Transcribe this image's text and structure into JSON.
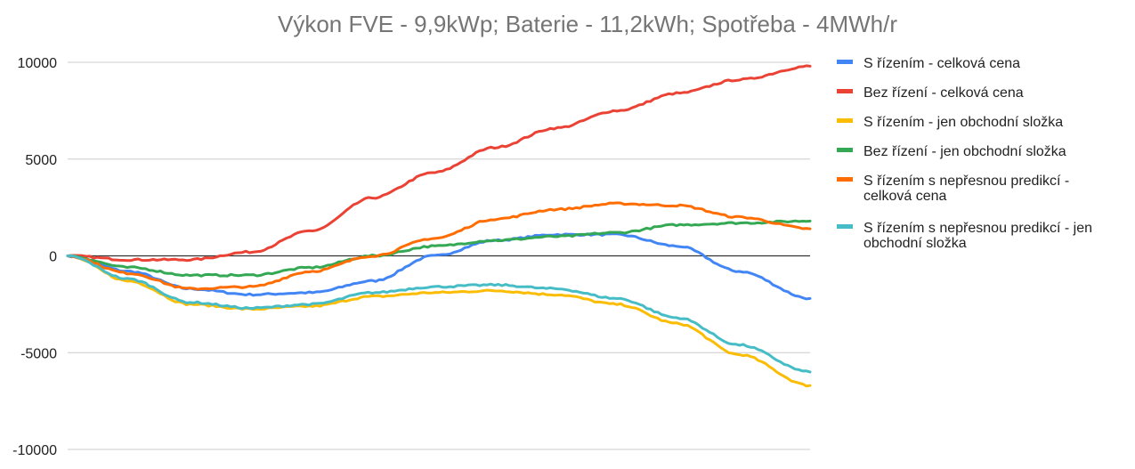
{
  "chart_data": {
    "type": "line",
    "title": "Výkon FVE - 9,9kWp; Baterie - 11,2kWh; Spotřeba - 4MWh/r",
    "xlabel": "",
    "ylabel": "",
    "ylim": [
      -10000,
      10000
    ],
    "y_ticks": [
      "10000",
      "5000",
      "0",
      "-5000",
      "-10000"
    ],
    "grid": true,
    "legend_position": "right",
    "x": [
      0,
      30,
      60,
      90,
      120,
      150,
      180,
      210,
      240,
      270,
      300,
      330,
      365
    ],
    "series": [
      {
        "name": "S řízením - celková cena",
        "color": "#4285F4",
        "values": [
          0,
          -800,
          -1700,
          -2000,
          -1900,
          -1300,
          0,
          800,
          1100,
          1100,
          500,
          -800,
          -2200
        ]
      },
      {
        "name": "Bez řízení - celková cena",
        "color": "#EA4335",
        "values": [
          0,
          -200,
          -200,
          200,
          1300,
          3000,
          4300,
          5600,
          6600,
          7500,
          8400,
          9100,
          9800
        ]
      },
      {
        "name": "S řízením - jen obchodní složka",
        "color": "#FBBC04",
        "values": [
          0,
          -1300,
          -2500,
          -2750,
          -2600,
          -2100,
          -1900,
          -1800,
          -2000,
          -2500,
          -3500,
          -5100,
          -6700
        ]
      },
      {
        "name": "Bez řízení  - jen obchodní složka",
        "color": "#34A853",
        "values": [
          0,
          -600,
          -1000,
          -1000,
          -600,
          0,
          500,
          800,
          1000,
          1200,
          1600,
          1700,
          1800
        ]
      },
      {
        "name": "S řízením s nepřesnou predikcí - celková cena",
        "color": "#FF6D01",
        "values": [
          0,
          -900,
          -1700,
          -1600,
          -800,
          0,
          900,
          1900,
          2400,
          2700,
          2600,
          2000,
          1400
        ]
      },
      {
        "name": "S řízením s nepřesnou predikcí - jen obchodní složka",
        "color": "#46BDC6",
        "values": [
          0,
          -1200,
          -2400,
          -2700,
          -2500,
          -1900,
          -1600,
          -1500,
          -1700,
          -2200,
          -3200,
          -4600,
          -6000
        ]
      }
    ],
    "legend_lines": [
      [
        "S řízením - celková cena"
      ],
      [
        "Bez řízení - celková cena"
      ],
      [
        "S řízením - jen obchodní složka"
      ],
      [
        "Bez řízení  - jen obchodní složka"
      ],
      [
        "S řízením s nepřesnou predikcí -",
        "celková cena"
      ],
      [
        "S řízením s nepřesnou predikcí - jen",
        "obchodní složka"
      ]
    ]
  }
}
